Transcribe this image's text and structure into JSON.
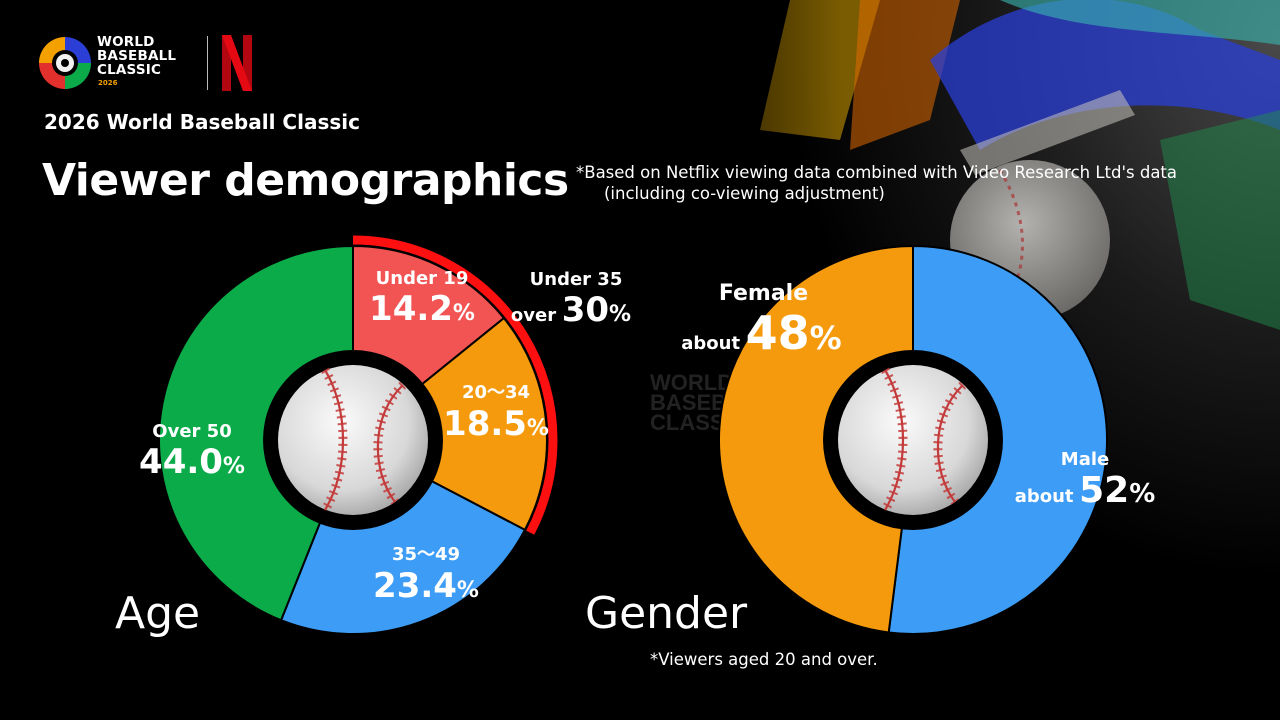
{
  "brand": {
    "wbc_line1": "WORLD",
    "wbc_line2": "BASEBALL",
    "wbc_line3": "CLASSIC",
    "wbc_year": "2026",
    "netflix_color": "#e50914"
  },
  "header": {
    "subtitle": "2026 World Baseball Classic",
    "title": "Viewer demographics",
    "note_line1": "*Based on Netflix viewing data combined with Video Research Ltd's data",
    "note_line2": "(including co-viewing adjustment)"
  },
  "chart_data": [
    {
      "type": "pie",
      "title": "Age",
      "slices": [
        {
          "label": "Under 19",
          "value": 14.2,
          "color": "#f25454"
        },
        {
          "label": "20～34",
          "value": 18.5,
          "color": "#f59a0c"
        },
        {
          "label": "35～49",
          "value": 23.4,
          "color": "#3d9cf5"
        },
        {
          "label": "Over 50",
          "value": 44.0,
          "color": "#0bab49"
        }
      ],
      "callout": {
        "label": "Under 35",
        "prefix": "over",
        "value": "30",
        "unit": "%",
        "color": "#ff1010"
      }
    },
    {
      "type": "pie",
      "title": "Gender",
      "slices": [
        {
          "label": "Male",
          "prefix": "about",
          "value": 52,
          "color": "#3d9cf5"
        },
        {
          "label": "Female",
          "prefix": "about",
          "value": 48,
          "color": "#f59a0c"
        }
      ],
      "note": "*Viewers aged 20 and over."
    }
  ],
  "labels": {
    "age": {
      "under19": {
        "name": "Under 19",
        "value": "14.2",
        "unit": "%"
      },
      "a20_34": {
        "name": "20～34",
        "value": "18.5",
        "unit": "%"
      },
      "a35_49": {
        "name": "35～49",
        "value": "23.4",
        "unit": "%"
      },
      "over50": {
        "name": "Over 50",
        "value": "44.0",
        "unit": "%"
      },
      "under35": {
        "name": "Under 35",
        "prefix": "over",
        "value": "30",
        "unit": "%"
      }
    },
    "gender": {
      "female": {
        "name": "Female",
        "prefix": "about",
        "value": "48",
        "unit": "%"
      },
      "male": {
        "name": "Male",
        "prefix": "about",
        "value": "52",
        "unit": "%"
      }
    }
  }
}
